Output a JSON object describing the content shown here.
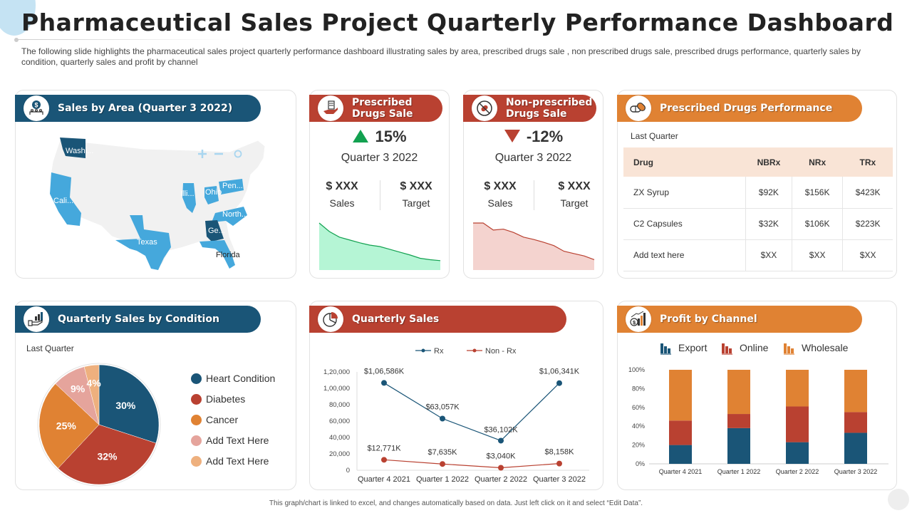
{
  "title": "Pharmaceutical Sales Project Quarterly Performance Dashboard",
  "subtitle": "The following slide highlights the pharmaceutical sales project quarterly performance dashboard illustrating sales by area, prescribed drugs sale , non prescribed drugs sale, prescribed drugs performance, quarterly sales by condition, quarterly sales and profit by channel",
  "colors": {
    "blue": "#1a5577",
    "red": "#b94131",
    "orange": "#e08233",
    "light_blue": "#45a8dc",
    "green": "#12a150"
  },
  "sales_by_area": {
    "title": "Sales by Area (Quarter 3 2022)",
    "icon": "money-dollar-people-icon",
    "map_controls": [
      "zoom-in",
      "zoom-out",
      "reset"
    ],
    "states": [
      {
        "label": "Washi...",
        "tier": "high"
      },
      {
        "label": "Cali...",
        "tier": "medium"
      },
      {
        "label": "Texas",
        "tier": "medium"
      },
      {
        "label": "Illi...",
        "tier": "medium"
      },
      {
        "label": "Ohio",
        "tier": "medium"
      },
      {
        "label": "Pen...",
        "tier": "medium"
      },
      {
        "label": "North...",
        "tier": "medium"
      },
      {
        "label": "Ge...",
        "tier": "high"
      },
      {
        "label": "Florida",
        "tier": "medium"
      }
    ]
  },
  "prescribed": {
    "title_line1": "Prescribed",
    "title_line2": "Drugs Sale",
    "icon": "hand-pill-bottle-icon",
    "change": "15%",
    "direction": "up",
    "quarter": "Quarter 3 2022",
    "sales_value": "$ XXX",
    "sales_label": "Sales",
    "target_value": "$ XXX",
    "target_label": "Target",
    "trend": [
      100,
      82,
      70,
      64,
      58,
      53,
      50,
      44,
      38,
      32,
      25,
      22,
      20
    ]
  },
  "non_prescribed": {
    "title_line1": "Non-prescribed",
    "title_line2": "Drugs Sale",
    "icon": "no-pill-icon",
    "change": "-12%",
    "direction": "down",
    "quarter": "Quarter 3 2022",
    "sales_value": "$ XXX",
    "sales_label": "Sales",
    "target_value": "$ XXX",
    "target_label": "Target",
    "trend": [
      100,
      100,
      85,
      87,
      80,
      70,
      65,
      59,
      52,
      40,
      35,
      30,
      22
    ]
  },
  "performance": {
    "title": "Prescribed Drugs Performance",
    "icon": "capsules-icon",
    "label": "Last Quarter",
    "columns": [
      "Drug",
      "NBRx",
      "NRx",
      "TRx"
    ],
    "rows": [
      [
        "ZX Syrup",
        "$92K",
        "$156K",
        "$423K"
      ],
      [
        "C2 Capsules",
        "$32K",
        "$106K",
        "$223K"
      ],
      [
        "Add text here",
        "$XX",
        "$XX",
        "$XX"
      ]
    ]
  },
  "by_condition": {
    "title": "Quarterly Sales by Condition",
    "icon": "hand-bar-chart-icon",
    "label": "Last Quarter"
  },
  "quarterly_sales": {
    "title": "Quarterly Sales",
    "icon": "pie-chart-icon"
  },
  "profit_channel": {
    "title": "Profit by Channel",
    "icon": "growth-chart-money-icon"
  },
  "footer": "This graph/chart is linked to excel, and changes automatically based on data. Just left click on it and select “Edit Data”.",
  "chart_data": [
    {
      "id": "condition_pie",
      "type": "pie",
      "title": "Quarterly Sales by Condition",
      "categories": [
        "Heart Condition",
        "Diabetes",
        "Cancer",
        "Add Text Here",
        "Add Text Here"
      ],
      "values": [
        30,
        32,
        25,
        9,
        4
      ],
      "labels": [
        "30%",
        "32%",
        "25%",
        "9%",
        "4%"
      ],
      "colors": [
        "#1a5577",
        "#b94131",
        "#e08233",
        "#e5a49c",
        "#eeb07e"
      ],
      "legend": "right"
    },
    {
      "id": "quarterly_sales_line",
      "type": "line",
      "title": "Quarterly Sales",
      "categories": [
        "Quarter 4 2021",
        "Quarter 1 2022",
        "Quarter 2 2022",
        "Quarter 3 2022"
      ],
      "series": [
        {
          "name": "Rx",
          "values": [
            106586,
            63057,
            36102,
            106341
          ],
          "labels": [
            "$1,06,586K",
            "$63,057K",
            "$36,102K",
            "$1,06,341K"
          ],
          "color": "#1a5577"
        },
        {
          "name": "Non - Rx",
          "values": [
            12771,
            7635,
            3040,
            8158
          ],
          "labels": [
            "$12,771K",
            "$7,635K",
            "$3,040K",
            "$8,158K"
          ],
          "color": "#b94131"
        }
      ],
      "yticks": [
        "0",
        "20,000",
        "40,000",
        "60,000",
        "80,000",
        "1,00,000",
        "1,20,000"
      ],
      "ylim": [
        0,
        120000
      ],
      "legend": "top-center"
    },
    {
      "id": "profit_channel_bar",
      "type": "bar",
      "stacked": true,
      "title": "Profit by Channel",
      "categories": [
        "Quarter 4 2021",
        "Quarter 1 2022",
        "Quarter 2 2022",
        "Quarter 3 2022"
      ],
      "series": [
        {
          "name": "Export",
          "values": [
            20,
            38,
            23,
            33
          ],
          "color": "#1a5577"
        },
        {
          "name": "Online",
          "values": [
            26,
            15,
            38,
            22
          ],
          "color": "#b94131"
        },
        {
          "name": "Wholesale",
          "values": [
            54,
            47,
            39,
            45
          ],
          "color": "#e08233"
        }
      ],
      "yticks": [
        "0%",
        "20%",
        "40%",
        "60%",
        "80%",
        "100%"
      ],
      "ylim": [
        0,
        100
      ],
      "legend": "top-center"
    }
  ]
}
